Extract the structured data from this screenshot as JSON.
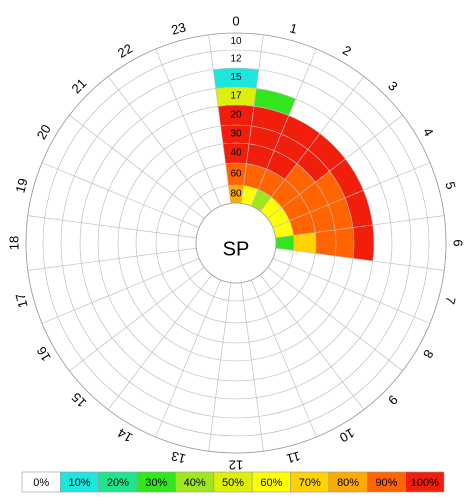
{
  "chart_data": {
    "type": "heatmap",
    "layout": "polar",
    "center_label": "SP",
    "hours": [
      "0",
      "1",
      "2",
      "3",
      "4",
      "5",
      "6",
      "7",
      "8",
      "9",
      "10",
      "11",
      "12",
      "13",
      "14",
      "15",
      "16",
      "17",
      "18",
      "19",
      "20",
      "21",
      "22",
      "23"
    ],
    "rings": [
      "80",
      "60",
      "40",
      "30",
      "20",
      "17",
      "15",
      "12",
      "10"
    ],
    "ring_order": "inner-to-outer",
    "values_percent": [
      [
        80,
        60,
        40,
        60,
        60,
        60,
        30,
        0,
        0,
        0,
        0,
        0,
        0,
        0,
        0,
        0,
        0,
        0,
        0,
        0,
        0,
        0,
        0,
        0
      ],
      [
        90,
        90,
        90,
        90,
        90,
        90,
        70,
        0,
        0,
        0,
        0,
        0,
        0,
        0,
        0,
        0,
        0,
        0,
        0,
        0,
        0,
        0,
        0,
        0
      ],
      [
        100,
        100,
        100,
        90,
        90,
        90,
        90,
        0,
        0,
        0,
        0,
        0,
        0,
        0,
        0,
        0,
        0,
        0,
        0,
        0,
        0,
        0,
        0,
        0
      ],
      [
        100,
        100,
        100,
        100,
        90,
        90,
        90,
        0,
        0,
        0,
        0,
        0,
        0,
        0,
        0,
        0,
        0,
        0,
        0,
        0,
        0,
        0,
        0,
        0
      ],
      [
        100,
        100,
        100,
        100,
        100,
        100,
        100,
        0,
        0,
        0,
        0,
        0,
        0,
        0,
        0,
        0,
        0,
        0,
        0,
        0,
        0,
        0,
        0,
        0
      ],
      [
        50,
        30,
        0,
        0,
        0,
        0,
        0,
        0,
        0,
        0,
        0,
        0,
        0,
        0,
        0,
        0,
        0,
        0,
        0,
        0,
        0,
        0,
        0,
        0
      ],
      [
        10,
        0,
        0,
        0,
        0,
        0,
        0,
        0,
        0,
        0,
        0,
        0,
        0,
        0,
        0,
        0,
        0,
        0,
        0,
        0,
        0,
        0,
        0,
        0
      ],
      [
        0,
        0,
        0,
        0,
        0,
        0,
        0,
        0,
        0,
        0,
        0,
        0,
        0,
        0,
        0,
        0,
        0,
        0,
        0,
        0,
        0,
        0,
        0,
        0
      ],
      [
        0,
        0,
        0,
        0,
        0,
        0,
        0,
        0,
        0,
        0,
        0,
        0,
        0,
        0,
        0,
        0,
        0,
        0,
        0,
        0,
        0,
        0,
        0,
        0
      ]
    ],
    "legend": {
      "placement": "bottom",
      "entries": [
        {
          "label": "0%",
          "color": "#ffffff"
        },
        {
          "label": "10%",
          "color": "#1ee6dc"
        },
        {
          "label": "20%",
          "color": "#1ee68c"
        },
        {
          "label": "30%",
          "color": "#32e61e"
        },
        {
          "label": "40%",
          "color": "#a0e61e"
        },
        {
          "label": "50%",
          "color": "#dcf00a"
        },
        {
          "label": "60%",
          "color": "#ffff00"
        },
        {
          "label": "70%",
          "color": "#ffd200"
        },
        {
          "label": "80%",
          "color": "#ffaa00"
        },
        {
          "label": "90%",
          "color": "#ff6400"
        },
        {
          "label": "100%",
          "color": "#f01e0a"
        }
      ]
    }
  }
}
